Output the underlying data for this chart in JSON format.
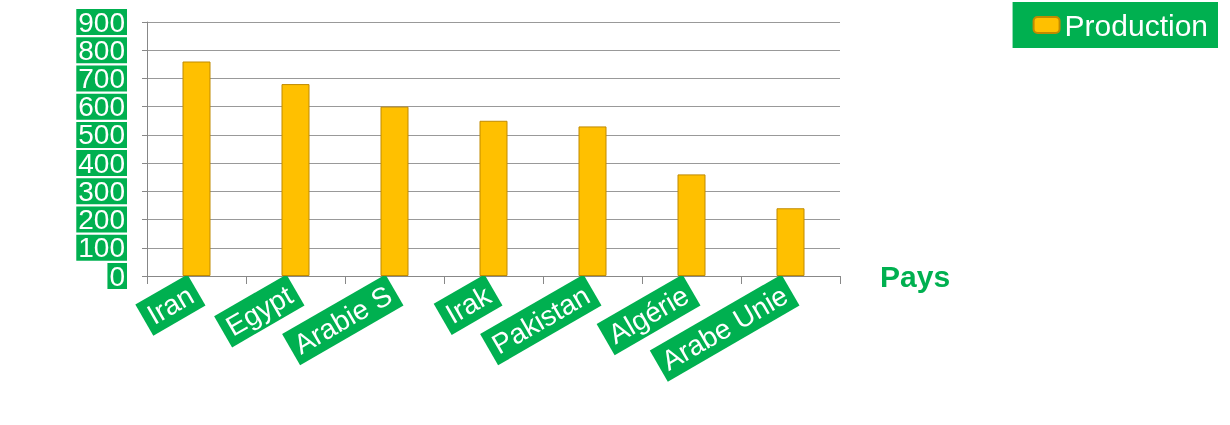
{
  "chart_data": {
    "type": "bar",
    "xlabel": "Pays",
    "categories": [
      "Iran",
      "Egypt",
      "Arabie S",
      "Irak",
      "Pakistan",
      "Algérie",
      "Arabe Unie"
    ],
    "series": [
      {
        "name": "Production",
        "color": "#ffc000",
        "values": [
          760,
          680,
          600,
          550,
          530,
          360,
          240
        ]
      }
    ],
    "ylim": [
      0,
      900
    ],
    "yticks": [
      0,
      100,
      200,
      300,
      400,
      500,
      600,
      700,
      800,
      900
    ],
    "grid": "y",
    "legend": "top right"
  }
}
